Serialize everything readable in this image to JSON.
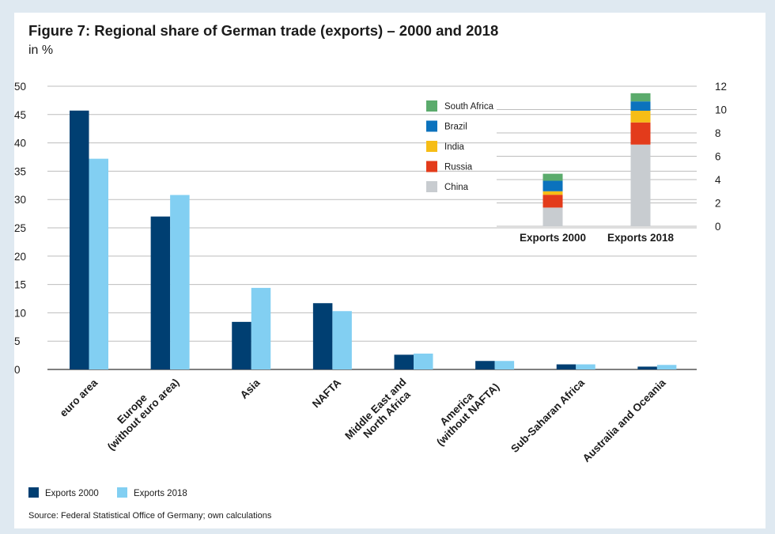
{
  "figure": {
    "title": "Figure 7: Regional share of German trade (exports) – 2000 and 2018",
    "subtitle": "in %",
    "source": "Source: Federal Statistical Office of Germany; own calculations"
  },
  "colors": {
    "exports_2000": "#003f72",
    "exports_2018": "#82cff2",
    "grid": "#bdbdbd",
    "axis": "#555555",
    "china": "#c8ccd0",
    "russia": "#e33b1b",
    "india": "#f6bd16",
    "brazil": "#0b72bd",
    "south_africa": "#5bab6c"
  },
  "chart_data": [
    {
      "type": "bar",
      "title": "Regional share of German trade (exports) – 2000 and 2018",
      "ylabel": "in %",
      "ylim": [
        0,
        50
      ],
      "yticks": [
        0,
        5,
        10,
        15,
        20,
        25,
        30,
        35,
        40,
        45,
        50
      ],
      "grid": true,
      "legend_position": "bottom-left",
      "categories": [
        [
          "euro area"
        ],
        [
          "Europe",
          "(without euro area)"
        ],
        [
          "Asia"
        ],
        [
          "NAFTA"
        ],
        [
          "Middle East and",
          "North Africa"
        ],
        [
          "America",
          "(without NAFTA)"
        ],
        [
          "Sub-Saharan Africa"
        ],
        [
          "Australia and Oceania"
        ]
      ],
      "series": [
        {
          "name": "Exports 2000",
          "values": [
            45.7,
            27.0,
            8.4,
            11.7,
            2.6,
            1.5,
            0.9,
            0.5
          ]
        },
        {
          "name": "Exports 2018",
          "values": [
            37.2,
            30.8,
            14.4,
            10.3,
            2.8,
            1.5,
            0.9,
            0.8
          ]
        }
      ]
    },
    {
      "type": "bar",
      "stacked": true,
      "title": "",
      "ylim": [
        0,
        12
      ],
      "yticks": [
        0,
        2,
        4,
        6,
        8,
        10,
        12
      ],
      "grid": true,
      "legend_position": "left",
      "categories": [
        "Exports 2000",
        "Exports 2018"
      ],
      "series": [
        {
          "name": "China",
          "values": [
            1.6,
            7.0
          ]
        },
        {
          "name": "Russia",
          "values": [
            1.1,
            1.9
          ]
        },
        {
          "name": "India",
          "values": [
            0.3,
            1.0
          ]
        },
        {
          "name": "Brazil",
          "values": [
            0.9,
            0.8
          ]
        },
        {
          "name": "South Africa",
          "values": [
            0.6,
            0.7
          ]
        }
      ]
    }
  ]
}
